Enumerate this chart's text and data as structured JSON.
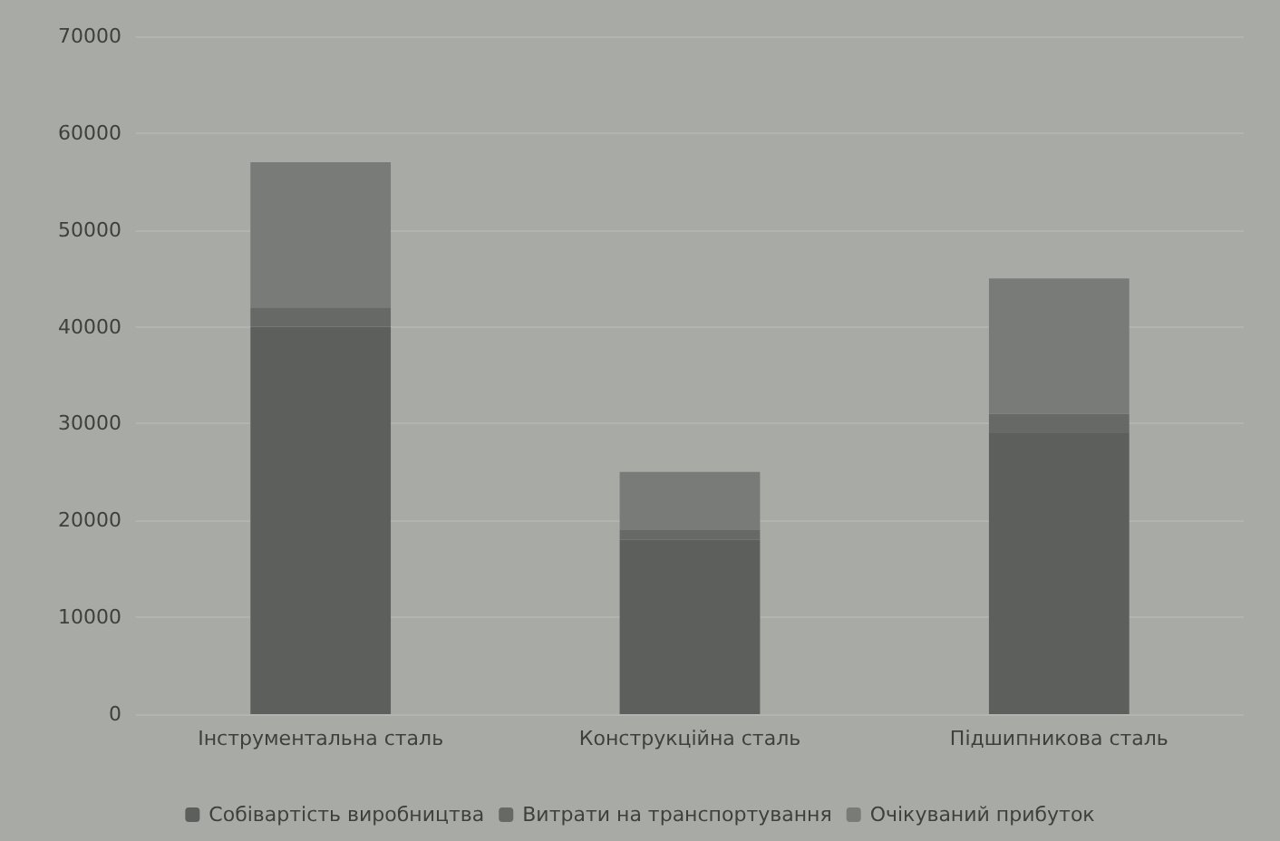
{
  "chart_data": {
    "type": "bar",
    "stacked": true,
    "categories": [
      "Інструментальна сталь",
      "Конструкційна сталь",
      "Підшипникова сталь"
    ],
    "series": [
      {
        "name": "Собівартість виробництва",
        "color": "#5c5f5b",
        "values": [
          40000,
          18000,
          29000
        ]
      },
      {
        "name": "Витрати на транспортування",
        "color": "#666965",
        "values": [
          2000,
          1000,
          2000
        ]
      },
      {
        "name": "Очікуваний прибуток",
        "color": "#787b77",
        "values": [
          15000,
          6000,
          14000
        ]
      }
    ],
    "ylim": [
      0,
      70000
    ],
    "yticks": [
      0,
      10000,
      20000,
      30000,
      40000,
      50000,
      60000,
      70000
    ],
    "grid": true,
    "legend": "bottom"
  }
}
